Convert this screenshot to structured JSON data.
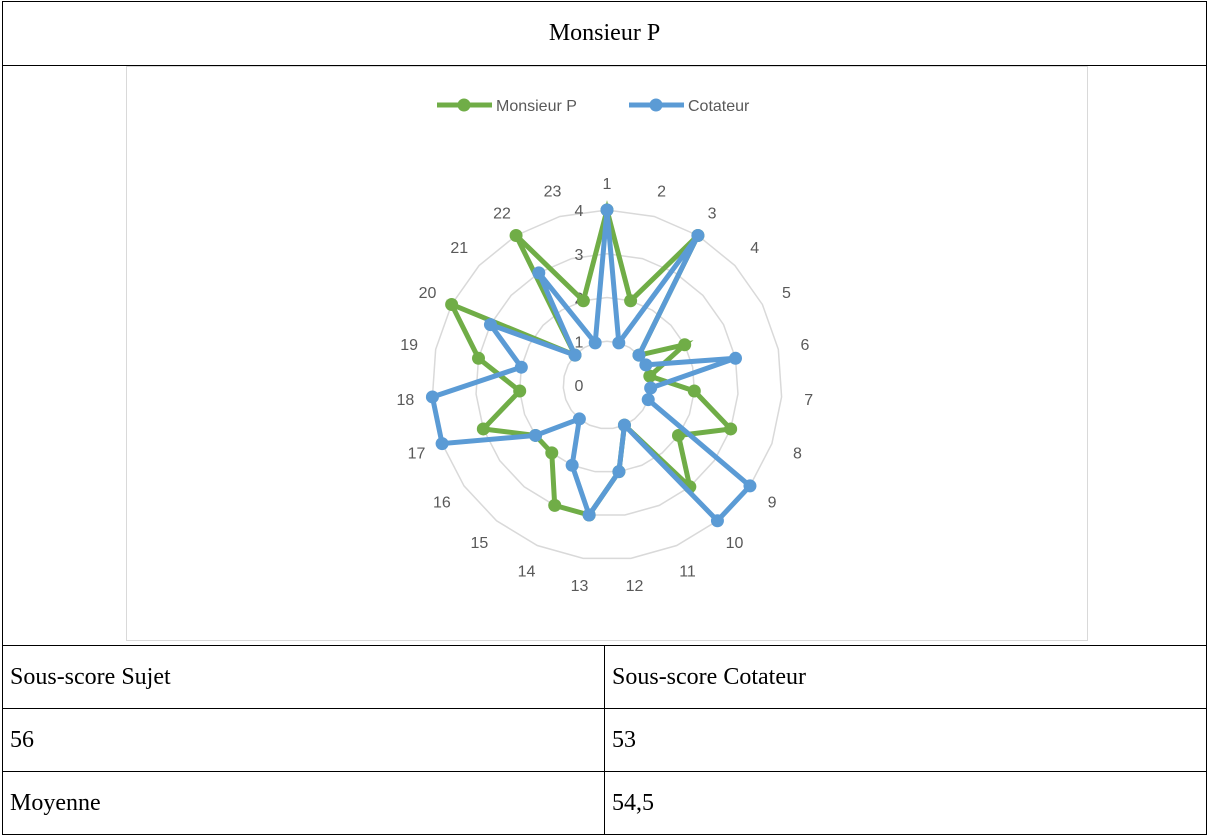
{
  "title": "Monsieur P",
  "summary": {
    "left_header": "Sous-score Sujet",
    "right_header": "Sous-score Cotateur",
    "sujet_score": "56",
    "cotateur_score": "53",
    "mean_label": "Moyenne",
    "mean_value": "54,5"
  },
  "chart_data": {
    "type": "radar",
    "categories": [
      "1",
      "2",
      "3",
      "4",
      "5",
      "6",
      "7",
      "8",
      "9",
      "10",
      "11",
      "12",
      "13",
      "14",
      "15",
      "16",
      "17",
      "18",
      "19",
      "20",
      "21",
      "22",
      "23"
    ],
    "rlim": [
      0,
      4
    ],
    "ticks": [
      "0",
      "1",
      "2",
      "3",
      "4"
    ],
    "grid": true,
    "legend": "top",
    "series": [
      {
        "name": "Monsieur P",
        "color": "#70ad47",
        "values": [
          4,
          2,
          4,
          1,
          2,
          1,
          2,
          3,
          2,
          3,
          1,
          2,
          3,
          3,
          2,
          2,
          3,
          2,
          3,
          4,
          1,
          4,
          2
        ]
      },
      {
        "name": "Cotateur",
        "color": "#5b9bd5",
        "values": [
          4,
          1,
          4,
          1,
          1,
          3,
          1,
          1,
          4,
          4,
          1,
          2,
          3,
          2,
          1,
          2,
          4,
          4,
          2,
          3,
          1,
          3,
          1
        ]
      }
    ]
  }
}
